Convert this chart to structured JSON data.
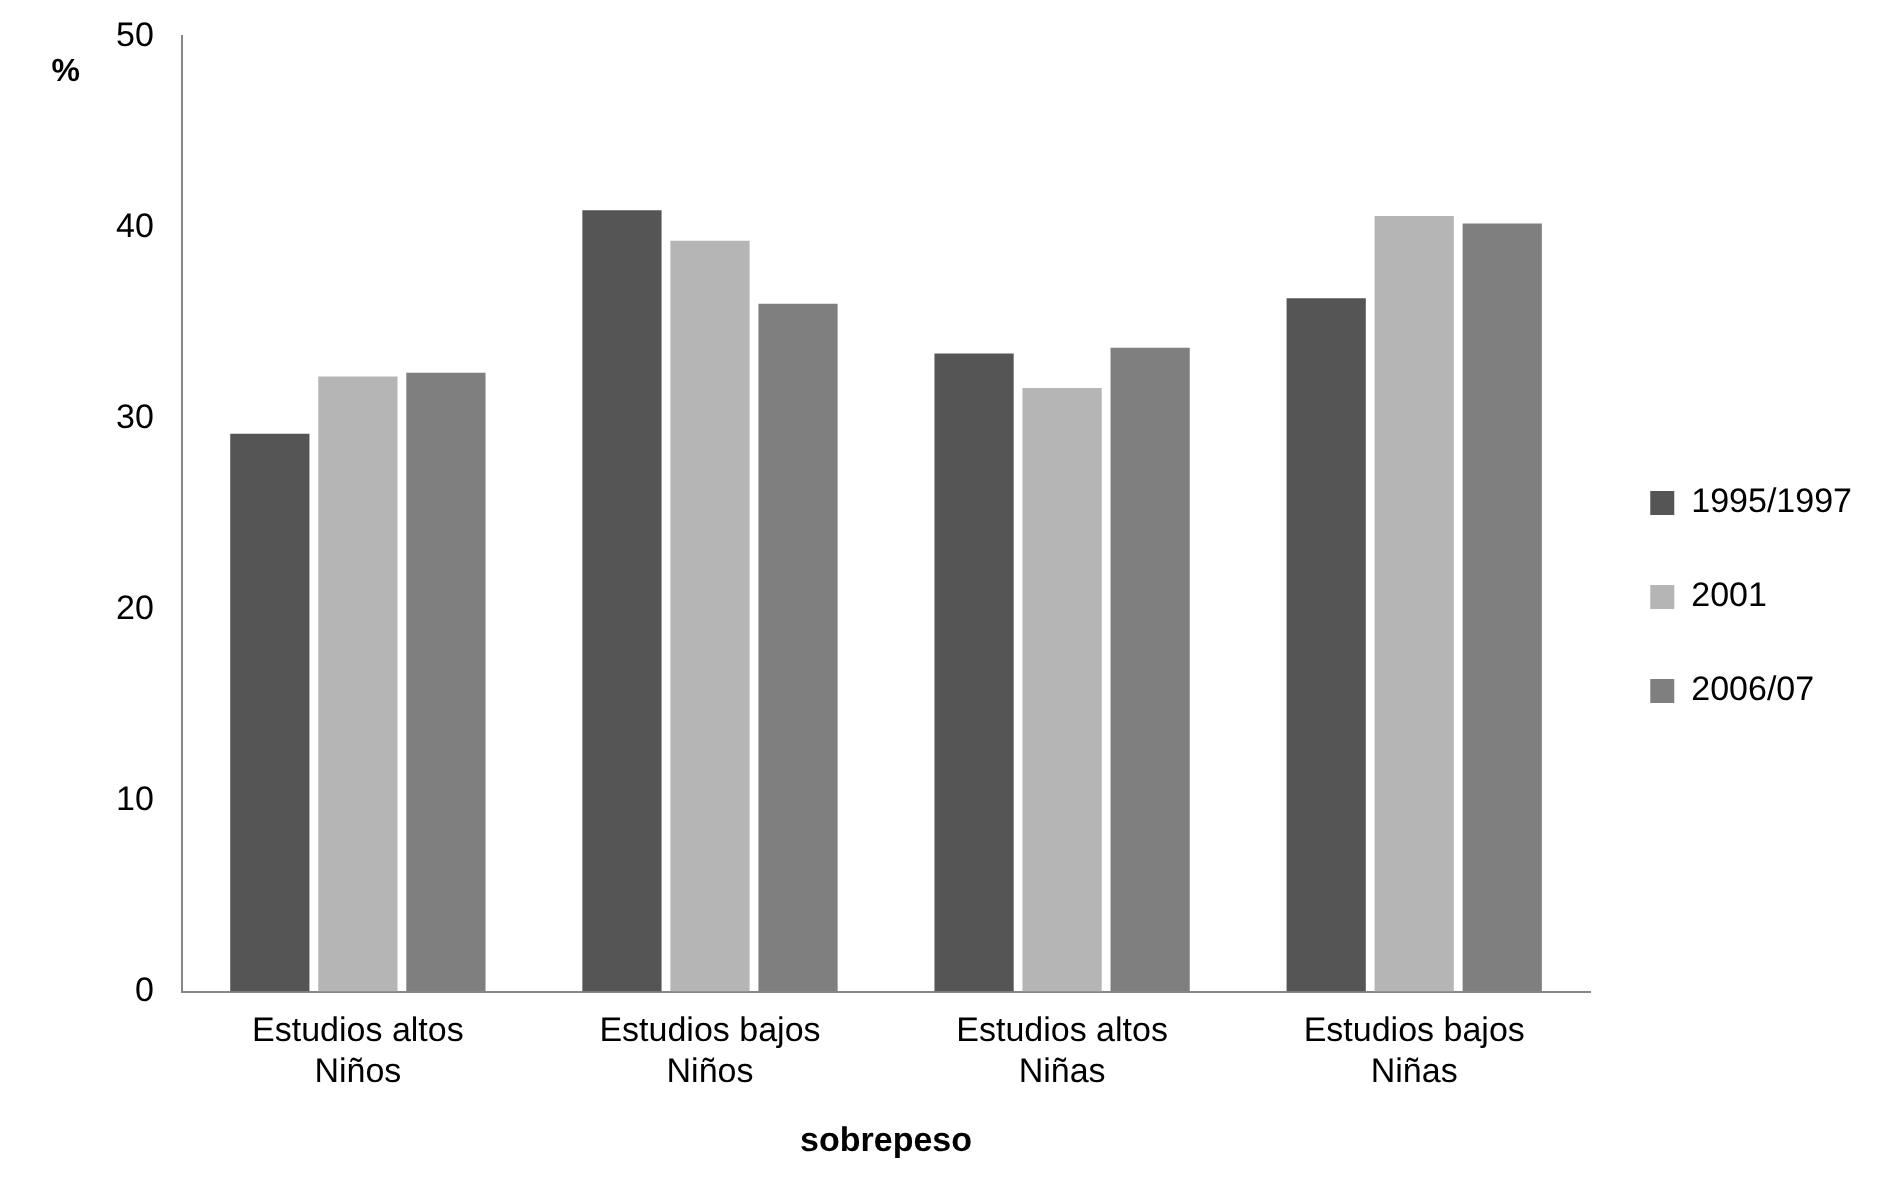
{
  "chart_data": {
    "type": "bar",
    "xlabel": "sobrepeso",
    "ylabel": "%",
    "categories": [
      "Estudios altos\nNiños",
      "Estudios bajos\nNiños",
      "Estudios altos\nNiñas",
      "Estudios bajos\nNiñas"
    ],
    "series": [
      {
        "name": "1995/1997",
        "color": "#555555",
        "values": [
          29.2,
          40.9,
          33.4,
          36.3
        ]
      },
      {
        "name": "2001",
        "color": "#b5b5b5",
        "values": [
          32.2,
          39.3,
          31.6,
          40.6
        ]
      },
      {
        "name": "2006/07",
        "color": "#7f7f7f",
        "values": [
          32.4,
          36.0,
          33.7,
          40.2
        ]
      }
    ],
    "ylim": [
      0,
      50
    ],
    "yticks": [
      0,
      10,
      20,
      30,
      40,
      50
    ],
    "grid": false,
    "legend": "right"
  }
}
